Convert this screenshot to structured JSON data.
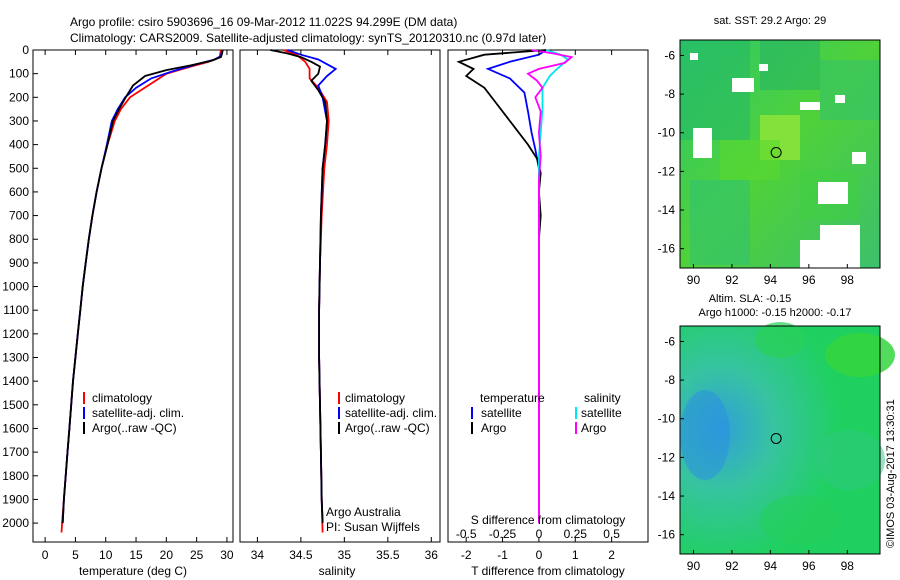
{
  "header": {
    "title_line1": "Argo profile: csiro 5903696_16 09-Mar-2012 11.022S 94.299E (DM data)",
    "title_line2": "Climatology: CARS2009. Satellite-adjusted climatology: synTS_20120310.nc (0.97d later)"
  },
  "colors": {
    "climatology": "#ff0000",
    "satellite": "#0000ff",
    "argo": "#000000",
    "salinity_satellite": "#00e5ee",
    "salinity_argo": "#ff00ff"
  },
  "chart_data": [
    {
      "type": "line",
      "id": "temperature",
      "xlabel": "temperature (deg C)",
      "ylabel": "",
      "xlim": [
        -2,
        31
      ],
      "ylim": [
        2080,
        0
      ],
      "x_ticks": [
        "0",
        "5",
        "10",
        "15",
        "20",
        "25",
        "30"
      ],
      "y_ticks": [
        "0",
        "100",
        "200",
        "300",
        "400",
        "500",
        "600",
        "700",
        "800",
        "900",
        "1000",
        "1100",
        "1200",
        "1300",
        "1400",
        "1500",
        "1600",
        "1700",
        "1800",
        "1900",
        "2000"
      ],
      "legend": [
        "climatology",
        "satellite-adj. clim.",
        "Argo(..raw -QC)"
      ],
      "series": [
        {
          "name": "climatology",
          "color": "#ff0000",
          "points": [
            [
              29.0,
              0
            ],
            [
              28.8,
              30
            ],
            [
              27,
              50
            ],
            [
              24,
              70
            ],
            [
              20,
              100
            ],
            [
              17,
              150
            ],
            [
              14,
              200
            ],
            [
              12.5,
              250
            ],
            [
              11.5,
              300
            ],
            [
              10.3,
              400
            ],
            [
              9.3,
              500
            ],
            [
              8.5,
              600
            ],
            [
              7.8,
              700
            ],
            [
              7.2,
              800
            ],
            [
              6.7,
              900
            ],
            [
              6.2,
              1000
            ],
            [
              5.8,
              1100
            ],
            [
              5.4,
              1200
            ],
            [
              5.0,
              1300
            ],
            [
              4.6,
              1400
            ],
            [
              4.3,
              1500
            ],
            [
              4.0,
              1600
            ],
            [
              3.7,
              1700
            ],
            [
              3.4,
              1800
            ],
            [
              3.1,
              1900
            ],
            [
              2.8,
              2000
            ],
            [
              2.7,
              2040
            ]
          ]
        },
        {
          "name": "satellite-adj. clim.",
          "color": "#0000ff",
          "points": [
            [
              29.2,
              0
            ],
            [
              29.0,
              25
            ],
            [
              28,
              40
            ],
            [
              25,
              60
            ],
            [
              21,
              90
            ],
            [
              17.5,
              120
            ],
            [
              15,
              160
            ],
            [
              13.2,
              200
            ],
            [
              12,
              250
            ],
            [
              11,
              300
            ],
            [
              10.2,
              400
            ],
            [
              9.3,
              500
            ],
            [
              8.5,
              600
            ],
            [
              7.8,
              700
            ],
            [
              7.2,
              800
            ],
            [
              6.7,
              900
            ],
            [
              6.2,
              1000
            ],
            [
              5.8,
              1100
            ],
            [
              5.4,
              1200
            ],
            [
              5.0,
              1300
            ],
            [
              4.6,
              1400
            ],
            [
              4.3,
              1500
            ],
            [
              4.0,
              1600
            ],
            [
              3.7,
              1700
            ],
            [
              3.4,
              1800
            ],
            [
              3.1,
              1900
            ],
            [
              2.9,
              2000
            ]
          ]
        },
        {
          "name": "Argo(..raw -QC)",
          "color": "#000000",
          "points": [
            [
              29.3,
              0
            ],
            [
              29.2,
              15
            ],
            [
              29.0,
              30
            ],
            [
              27.5,
              45
            ],
            [
              24,
              65
            ],
            [
              20,
              85
            ],
            [
              16.5,
              110
            ],
            [
              14.5,
              150
            ],
            [
              13.3,
              200
            ],
            [
              12.2,
              250
            ],
            [
              11.2,
              300
            ],
            [
              10.3,
              400
            ],
            [
              9.3,
              500
            ],
            [
              8.5,
              600
            ],
            [
              7.8,
              700
            ],
            [
              7.2,
              800
            ],
            [
              6.7,
              900
            ],
            [
              6.2,
              1000
            ],
            [
              5.8,
              1100
            ],
            [
              5.4,
              1200
            ],
            [
              5.0,
              1300
            ],
            [
              4.6,
              1400
            ],
            [
              4.3,
              1500
            ],
            [
              4.0,
              1600
            ],
            [
              3.7,
              1700
            ],
            [
              3.4,
              1800
            ],
            [
              3.1,
              1900
            ],
            [
              2.9,
              2000
            ]
          ]
        }
      ]
    },
    {
      "type": "line",
      "id": "salinity",
      "xlabel": "salinity",
      "xlim": [
        33.8,
        36.1
      ],
      "ylim": [
        2080,
        0
      ],
      "x_ticks": [
        "34",
        "34.5",
        "35",
        "35.5",
        "36"
      ],
      "legend": [
        "climatology",
        "satellite-adj. clim.",
        "Argo(..raw -QC)"
      ],
      "annotations": [
        "Argo Australia",
        "PI: Susan Wijffels"
      ],
      "series": [
        {
          "name": "climatology",
          "color": "#ff0000",
          "points": [
            [
              34.3,
              0
            ],
            [
              34.45,
              20
            ],
            [
              34.55,
              50
            ],
            [
              34.6,
              80
            ],
            [
              34.6,
              120
            ],
            [
              34.7,
              160
            ],
            [
              34.8,
              220
            ],
            [
              34.82,
              300
            ],
            [
              34.8,
              400
            ],
            [
              34.77,
              500
            ],
            [
              34.74,
              700
            ],
            [
              34.72,
              900
            ],
            [
              34.71,
              1100
            ],
            [
              34.71,
              1300
            ],
            [
              34.72,
              1500
            ],
            [
              34.73,
              1700
            ],
            [
              34.74,
              1900
            ],
            [
              34.75,
              2040
            ]
          ]
        },
        {
          "name": "satellite-adj. clim.",
          "color": "#0000ff",
          "points": [
            [
              34.35,
              0
            ],
            [
              34.5,
              20
            ],
            [
              34.7,
              40
            ],
            [
              34.9,
              80
            ],
            [
              34.8,
              110
            ],
            [
              34.7,
              150
            ],
            [
              34.75,
              200
            ],
            [
              34.8,
              300
            ],
            [
              34.78,
              400
            ],
            [
              34.75,
              500
            ],
            [
              34.73,
              700
            ],
            [
              34.72,
              900
            ],
            [
              34.71,
              1100
            ],
            [
              34.71,
              1300
            ],
            [
              34.72,
              1500
            ],
            [
              34.73,
              1700
            ],
            [
              34.74,
              1900
            ],
            [
              34.75,
              1990
            ]
          ]
        },
        {
          "name": "Argo(..raw -QC)",
          "color": "#000000",
          "points": [
            [
              34.15,
              0
            ],
            [
              34.35,
              15
            ],
            [
              34.5,
              30
            ],
            [
              34.62,
              50
            ],
            [
              34.72,
              70
            ],
            [
              34.7,
              100
            ],
            [
              34.62,
              130
            ],
            [
              34.7,
              170
            ],
            [
              34.78,
              220
            ],
            [
              34.8,
              300
            ],
            [
              34.78,
              400
            ],
            [
              34.75,
              500
            ],
            [
              34.73,
              700
            ],
            [
              34.72,
              900
            ],
            [
              34.71,
              1100
            ],
            [
              34.71,
              1300
            ],
            [
              34.72,
              1500
            ],
            [
              34.73,
              1700
            ],
            [
              34.74,
              1900
            ],
            [
              34.75,
              2000
            ]
          ]
        }
      ]
    },
    {
      "type": "line",
      "id": "differences",
      "xlabel": "T difference from climatology",
      "xlabel_top": "S difference from climatology",
      "xlim": [
        -2.5,
        3.0
      ],
      "ylim": [
        2080,
        0
      ],
      "x_ticks": [
        "-2",
        "-1",
        "0",
        "1",
        "2"
      ],
      "x_ticks_top": [
        "-0.5",
        "-0.25",
        "0",
        "0.25",
        "0.5"
      ],
      "legend_groups": [
        {
          "title": "temperature",
          "entries": [
            "satellite",
            "Argo"
          ]
        },
        {
          "title": "salinity",
          "entries": [
            "satellite",
            "Argo"
          ]
        }
      ],
      "series": [
        {
          "name": "temperature satellite",
          "color": "#0000ff",
          "points": [
            [
              0.2,
              0
            ],
            [
              0.0,
              20
            ],
            [
              -0.8,
              50
            ],
            [
              -1.4,
              80
            ],
            [
              -0.8,
              120
            ],
            [
              -0.4,
              180
            ],
            [
              -0.3,
              260
            ],
            [
              -0.2,
              350
            ],
            [
              -0.1,
              420
            ],
            [
              0.0,
              500
            ],
            [
              0.0,
              700
            ],
            [
              0.0,
              1000
            ],
            [
              0.0,
              1500
            ],
            [
              0.0,
              2000
            ]
          ]
        },
        {
          "name": "temperature Argo",
          "color": "#000000",
          "points": [
            [
              0.2,
              0
            ],
            [
              -1.5,
              20
            ],
            [
              -2.2,
              50
            ],
            [
              -1.8,
              80
            ],
            [
              -2.0,
              110
            ],
            [
              -1.5,
              160
            ],
            [
              -1.2,
              220
            ],
            [
              -0.9,
              280
            ],
            [
              -0.6,
              340
            ],
            [
              -0.3,
              400
            ],
            [
              -0.05,
              460
            ],
            [
              0.05,
              520
            ],
            [
              0.0,
              600
            ],
            [
              0.05,
              700
            ],
            [
              0.0,
              800
            ],
            [
              0.0,
              1000
            ],
            [
              0.0,
              1400
            ],
            [
              0.0,
              1700
            ],
            [
              0.0,
              2000
            ]
          ]
        },
        {
          "name": "salinity satellite",
          "color": "#00e5ee",
          "points": [
            [
              0.2,
              0
            ],
            [
              0.6,
              20
            ],
            [
              0.8,
              40
            ],
            [
              0.5,
              80
            ],
            [
              0.3,
              110
            ],
            [
              0.1,
              160
            ],
            [
              0.1,
              250
            ],
            [
              0.05,
              350
            ],
            [
              0.0,
              450
            ],
            [
              0.0,
              700
            ],
            [
              0.0,
              1000
            ],
            [
              0.0,
              1500
            ],
            [
              0.0,
              2000
            ]
          ]
        },
        {
          "name": "salinity Argo",
          "color": "#ff00ff",
          "points": [
            [
              -0.2,
              0
            ],
            [
              0.4,
              15
            ],
            [
              0.9,
              30
            ],
            [
              0.7,
              55
            ],
            [
              0.0,
              80
            ],
            [
              -0.3,
              100
            ],
            [
              -0.05,
              130
            ],
            [
              0.1,
              160
            ],
            [
              -0.1,
              200
            ],
            [
              0.05,
              260
            ],
            [
              0.0,
              350
            ],
            [
              0.05,
              450
            ],
            [
              0.0,
              550
            ],
            [
              0.0,
              700
            ],
            [
              0.0,
              1000
            ],
            [
              0.0,
              1500
            ],
            [
              0.0,
              2000
            ]
          ]
        }
      ]
    },
    {
      "type": "heatmap",
      "id": "sst_map",
      "title": "sat. SST: 29.2 Argo: 29",
      "xlim": [
        89.3,
        99.7
      ],
      "ylim": [
        -17.0,
        -5.2
      ],
      "x_ticks": [
        "90",
        "92",
        "94",
        "96",
        "98"
      ],
      "y_ticks": [
        "-6",
        "-8",
        "-10",
        "-12",
        "-14",
        "-16"
      ],
      "marker": {
        "lon": 94.3,
        "lat": -11.02
      }
    },
    {
      "type": "heatmap",
      "id": "sla_map",
      "title_line1": "Altim. SLA: -0.15",
      "title_line2": "Argo h1000: -0.15 h2000: -0.17",
      "xlim": [
        89.3,
        99.7
      ],
      "ylim": [
        -17.0,
        -5.2
      ],
      "x_ticks": [
        "90",
        "92",
        "94",
        "96",
        "98"
      ],
      "y_ticks": [
        "-6",
        "-8",
        "-10",
        "-12",
        "-14",
        "-16"
      ],
      "marker": {
        "lon": 94.3,
        "lat": -11.02
      }
    }
  ],
  "footer": {
    "credit": "©IMOS 03-Aug-2017 13:30:31"
  }
}
